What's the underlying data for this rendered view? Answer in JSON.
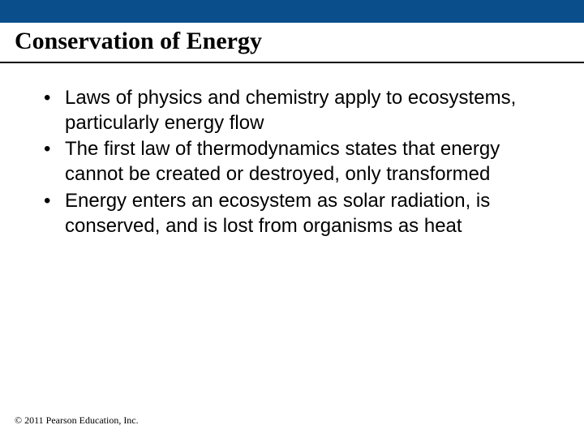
{
  "slide": {
    "top_bar_color": "#0a4e8c",
    "title": "Conservation of Energy",
    "title_font_family": "Times New Roman",
    "title_font_size_pt": 30,
    "title_font_weight": "bold",
    "title_color": "#000000",
    "divider_color": "#000000",
    "bullets": [
      "Laws of physics and chemistry apply to ecosystems, particularly energy flow",
      "The first law of thermodynamics states that energy cannot be created or destroyed, only transformed",
      "Energy enters an ecosystem as solar radiation, is conserved, and is lost from organisms as heat"
    ],
    "bullet_font_family": "Arial",
    "bullet_font_size_pt": 24,
    "bullet_color": "#000000",
    "background_color": "#ffffff",
    "footer": "© 2011 Pearson Education, Inc.",
    "footer_font_family": "Times New Roman",
    "footer_font_size_pt": 12,
    "footer_color": "#000000"
  }
}
